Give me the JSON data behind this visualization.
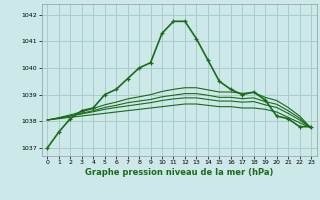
{
  "title": "Graphe pression niveau de la mer (hPa)",
  "bg_color": "#cce8e8",
  "grid_color": "#aacccc",
  "line_color": "#1a6b1a",
  "xlim": [
    -0.5,
    23.5
  ],
  "ylim": [
    1036.7,
    1042.4
  ],
  "yticks": [
    1037,
    1038,
    1039,
    1040,
    1041,
    1042
  ],
  "xticks": [
    0,
    1,
    2,
    3,
    4,
    5,
    6,
    7,
    8,
    9,
    10,
    11,
    12,
    13,
    14,
    15,
    16,
    17,
    18,
    19,
    20,
    21,
    22,
    23
  ],
  "series": [
    {
      "x": [
        0,
        1,
        2,
        3,
        4,
        5,
        6,
        7,
        8,
        9,
        10,
        11,
        12,
        13,
        14,
        15,
        16,
        17,
        18,
        19,
        20,
        21,
        22,
        23
      ],
      "y": [
        1037.0,
        1037.6,
        1038.1,
        1038.4,
        1038.5,
        1039.0,
        1039.2,
        1039.6,
        1040.0,
        1040.2,
        1041.3,
        1041.75,
        1041.75,
        1041.1,
        1040.3,
        1039.5,
        1039.2,
        1039.0,
        1039.1,
        1038.8,
        1038.2,
        1038.1,
        1037.8,
        1037.8
      ],
      "marker": true,
      "lw": 1.2
    },
    {
      "x": [
        0,
        1,
        2,
        3,
        4,
        5,
        6,
        7,
        8,
        9,
        10,
        11,
        12,
        13,
        14,
        15,
        16,
        17,
        18,
        19,
        20,
        21,
        22,
        23
      ],
      "y": [
        1038.05,
        1038.1,
        1038.15,
        1038.2,
        1038.25,
        1038.3,
        1038.35,
        1038.4,
        1038.45,
        1038.5,
        1038.55,
        1038.6,
        1038.65,
        1038.65,
        1038.6,
        1038.55,
        1038.55,
        1038.5,
        1038.5,
        1038.45,
        1038.35,
        1038.15,
        1037.95,
        1037.75
      ],
      "marker": false,
      "lw": 0.8
    },
    {
      "x": [
        0,
        1,
        2,
        3,
        4,
        5,
        6,
        7,
        8,
        9,
        10,
        11,
        12,
        13,
        14,
        15,
        16,
        17,
        18,
        19,
        20,
        21,
        22,
        23
      ],
      "y": [
        1038.05,
        1038.12,
        1038.2,
        1038.28,
        1038.36,
        1038.45,
        1038.52,
        1038.58,
        1038.64,
        1038.7,
        1038.78,
        1038.84,
        1038.88,
        1038.88,
        1038.82,
        1038.76,
        1038.76,
        1038.72,
        1038.74,
        1038.62,
        1038.52,
        1038.3,
        1038.05,
        1037.75
      ],
      "marker": false,
      "lw": 0.8
    },
    {
      "x": [
        0,
        1,
        2,
        3,
        4,
        5,
        6,
        7,
        8,
        9,
        10,
        11,
        12,
        13,
        14,
        15,
        16,
        17,
        18,
        19,
        20,
        21,
        22,
        23
      ],
      "y": [
        1038.05,
        1038.12,
        1038.2,
        1038.3,
        1038.4,
        1038.52,
        1038.6,
        1038.7,
        1038.76,
        1038.82,
        1038.92,
        1038.98,
        1039.04,
        1039.04,
        1038.98,
        1038.9,
        1038.9,
        1038.85,
        1038.88,
        1038.74,
        1038.64,
        1038.4,
        1038.12,
        1037.75
      ],
      "marker": false,
      "lw": 0.8
    },
    {
      "x": [
        0,
        1,
        2,
        3,
        4,
        5,
        6,
        7,
        8,
        9,
        10,
        11,
        12,
        13,
        14,
        15,
        16,
        17,
        18,
        19,
        20,
        21,
        22,
        23
      ],
      "y": [
        1038.05,
        1038.14,
        1038.24,
        1038.36,
        1038.48,
        1038.62,
        1038.72,
        1038.84,
        1038.92,
        1039.0,
        1039.12,
        1039.2,
        1039.26,
        1039.26,
        1039.18,
        1039.1,
        1039.1,
        1039.05,
        1039.08,
        1038.9,
        1038.78,
        1038.52,
        1038.2,
        1037.75
      ],
      "marker": false,
      "lw": 0.8
    }
  ]
}
